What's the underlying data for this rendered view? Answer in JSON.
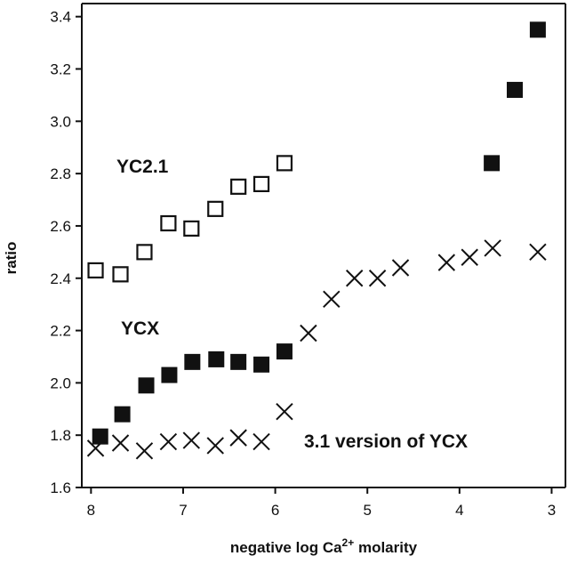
{
  "chart_data": {
    "type": "scatter",
    "xlabel": "negative log Ca",
    "xlabel_superscript": "2+",
    "xlabel_suffix": " molarity",
    "ylabel": "ratio",
    "xlim": [
      8.1,
      2.85
    ],
    "ylim": [
      1.6,
      3.45
    ],
    "x_reversed": true,
    "x_ticks": [
      8,
      7,
      6,
      5,
      4,
      3
    ],
    "y_ticks": [
      "1.6",
      "1.8",
      "2.0",
      "2.2",
      "2.4",
      "2.6",
      "2.8",
      "3.0",
      "3.2",
      "3.4"
    ],
    "series": [
      {
        "name": "YC2.1",
        "marker": "open-square",
        "color": "#111111",
        "x": [
          7.95,
          7.68,
          7.42,
          7.16,
          6.91,
          6.65,
          6.4,
          6.15,
          5.9
        ],
        "y": [
          2.43,
          2.415,
          2.5,
          2.61,
          2.59,
          2.665,
          2.75,
          2.76,
          2.84
        ]
      },
      {
        "name": "YCX",
        "marker": "filled-square",
        "color": "#111111",
        "x": [
          7.9,
          7.66,
          7.4,
          7.15,
          6.9,
          6.64,
          6.4,
          6.15,
          5.9,
          3.65,
          3.4,
          3.15
        ],
        "y": [
          1.795,
          1.88,
          1.99,
          2.03,
          2.08,
          2.09,
          2.08,
          2.07,
          2.12,
          2.84,
          3.12,
          3.35
        ]
      },
      {
        "name": "3.1 version of YCX",
        "marker": "x",
        "color": "#111111",
        "x": [
          7.95,
          7.68,
          7.42,
          7.16,
          6.91,
          6.65,
          6.4,
          6.15,
          5.9,
          5.64,
          5.39,
          5.14,
          4.89,
          4.64,
          4.14,
          3.89,
          3.64,
          3.15
        ],
        "y": [
          1.75,
          1.77,
          1.74,
          1.775,
          1.78,
          1.76,
          1.79,
          1.775,
          1.89,
          2.19,
          2.32,
          2.4,
          2.4,
          2.44,
          2.46,
          2.48,
          2.515,
          2.5
        ]
      }
    ]
  }
}
